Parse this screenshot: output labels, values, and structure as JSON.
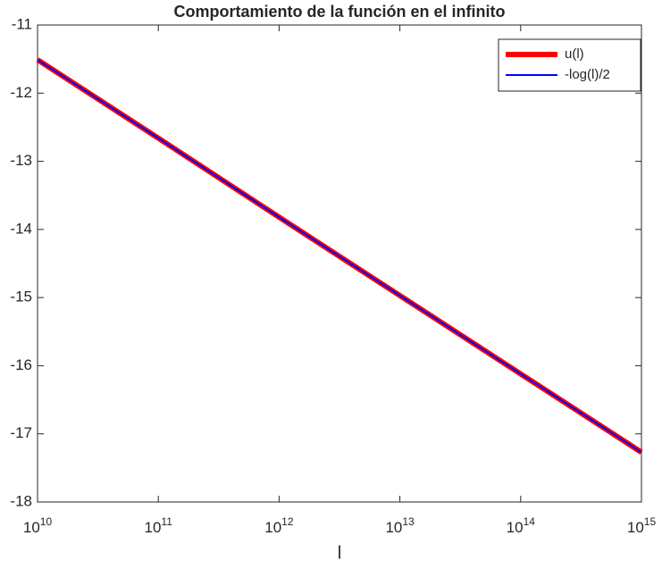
{
  "chart_data": {
    "type": "line",
    "title": "Comportamiento de la función en el infinito",
    "x_label": "l",
    "x": [
      10000000000,
      100000000000,
      1000000000000,
      10000000000000,
      100000000000000,
      1000000000000000
    ],
    "series": [
      {
        "name": "u(l)",
        "color": "#ff0000",
        "values": [
          -11.51,
          -12.66,
          -13.82,
          -14.97,
          -16.12,
          -17.27
        ]
      },
      {
        "name": "-log(l)/2",
        "color": "#0000ff",
        "values": [
          -11.51,
          -12.66,
          -13.82,
          -14.97,
          -16.12,
          -17.27
        ]
      }
    ],
    "xlim": [
      10000000000,
      1000000000000000
    ],
    "ylim": [
      -18,
      -11
    ],
    "x_log": true,
    "xticks": [
      {
        "value": 10000000000,
        "label": "10^10"
      },
      {
        "value": 100000000000,
        "label": "10^11"
      },
      {
        "value": 1000000000000,
        "label": "10^12"
      },
      {
        "value": 10000000000000,
        "label": "10^13"
      },
      {
        "value": 100000000000000,
        "label": "10^14"
      },
      {
        "value": 1000000000000000,
        "label": "10^15"
      }
    ],
    "yticks": [
      -18,
      -17,
      -16,
      -15,
      -14,
      -13,
      -12,
      -11
    ],
    "legend": "top-right"
  }
}
